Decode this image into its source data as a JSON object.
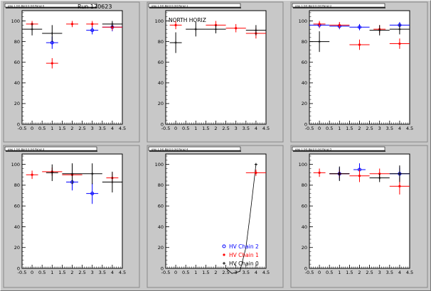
{
  "run_label": "Run 170623",
  "colors": {
    "chain2": "#0000ff",
    "chain1": "#ff0000",
    "chain0": "#000000",
    "pad": "#c8c8c8",
    "frame": "#ffffff"
  },
  "chart_data": [
    {
      "type": "scatter",
      "title": "ewe 1 [H] Bord 0 [H] Panel 0",
      "annotation": "Run 170623",
      "xlim": [
        -0.5,
        4.5
      ],
      "ylim": [
        0,
        110
      ],
      "xticks": [
        "-0.5",
        "0",
        "0.5",
        "1",
        "1.5",
        "2",
        "2.5",
        "3",
        "3.5",
        "4",
        "4.5"
      ],
      "yticks": [
        "0",
        "20",
        "40",
        "60",
        "80",
        "100"
      ],
      "series": [
        {
          "name": "HV Chain 2",
          "marker": "circle",
          "color": "#0000ff",
          "points": [
            [
              1,
              79,
              0.3,
              6
            ],
            [
              3,
              91,
              0.3,
              4
            ],
            [
              4,
              94,
              0.5,
              4
            ]
          ]
        },
        {
          "name": "HV Chain 1",
          "marker": "star",
          "color": "#ff0000",
          "points": [
            [
              0,
              97,
              0.3,
              3
            ],
            [
              1,
              59,
              0.3,
              5
            ],
            [
              2,
              97,
              0.3,
              3
            ],
            [
              3,
              97,
              0.3,
              3
            ],
            [
              4,
              94,
              0.5,
              3
            ]
          ]
        },
        {
          "name": "HV Chain 0",
          "marker": "cross",
          "color": "#000000",
          "points": [
            [
              0,
              92,
              0.5,
              6
            ],
            [
              1,
              88,
              0.5,
              8
            ],
            [
              4,
              97,
              0.5,
              3
            ]
          ]
        }
      ]
    },
    {
      "type": "scatter",
      "title": "ewe 1 [H] Bord 0 [H] Panel 1",
      "annotation": "NORTH HORIZ",
      "xlim": [
        -0.5,
        4.5
      ],
      "ylim": [
        0,
        110
      ],
      "xticks": [
        "-0.5",
        "0",
        "0.5",
        "1",
        "1.5",
        "2",
        "2.5",
        "3",
        "3.5",
        "4",
        "4.5"
      ],
      "yticks": [
        "0",
        "20",
        "40",
        "60",
        "80",
        "100"
      ],
      "series": [
        {
          "name": "HV Chain 1",
          "marker": "star",
          "color": "#ff0000",
          "points": [
            [
              0,
              96,
              0.3,
              4
            ],
            [
              2,
              96,
              0.5,
              4
            ],
            [
              3,
              93,
              0.5,
              4
            ],
            [
              4,
              88,
              0.5,
              5
            ]
          ]
        },
        {
          "name": "HV Chain 0",
          "marker": "cross",
          "color": "#000000",
          "points": [
            [
              0,
              79,
              0.3,
              10
            ],
            [
              1,
              92,
              0.5,
              7
            ],
            [
              2,
              92,
              0.5,
              4
            ],
            [
              4,
              91,
              0.5,
              5
            ]
          ]
        }
      ]
    },
    {
      "type": "scatter",
      "title": "ewe 1 [H] Bord 0 [H] Panel 2",
      "annotation": "",
      "xlim": [
        -0.5,
        4.5
      ],
      "ylim": [
        0,
        110
      ],
      "xticks": [
        "-0.5",
        "0",
        "0.5",
        "1",
        "1.5",
        "2",
        "2.5",
        "3",
        "3.5",
        "4",
        "4.5"
      ],
      "yticks": [
        "0",
        "20",
        "40",
        "60",
        "80",
        "100"
      ],
      "series": [
        {
          "name": "HV Chain 2",
          "marker": "circle",
          "color": "#0000ff",
          "points": [
            [
              0,
              96,
              0.5,
              3
            ],
            [
              1,
              95,
              0.5,
              3
            ],
            [
              2,
              94,
              0.5,
              3
            ],
            [
              4,
              96,
              0.5,
              3
            ]
          ]
        },
        {
          "name": "HV Chain 1",
          "marker": "star",
          "color": "#ff0000",
          "points": [
            [
              0,
              97,
              0.3,
              3
            ],
            [
              1,
              96,
              0.5,
              3
            ],
            [
              2,
              77,
              0.5,
              5
            ],
            [
              3,
              92,
              0.3,
              4
            ],
            [
              4,
              78,
              0.5,
              5
            ]
          ]
        },
        {
          "name": "HV Chain 0",
          "marker": "cross",
          "color": "#000000",
          "points": [
            [
              0,
              80,
              0.5,
              10
            ],
            [
              3,
              91,
              0.5,
              5
            ],
            [
              4,
              92,
              0.5,
              5
            ]
          ]
        }
      ]
    },
    {
      "type": "scatter",
      "title": "ewe 1 [H] Bord 0 [H] Panel 3",
      "annotation": "",
      "xlim": [
        -0.5,
        4.5
      ],
      "ylim": [
        0,
        110
      ],
      "xticks": [
        "-0.5",
        "0",
        "0.5",
        "1",
        "1.5",
        "2",
        "2.5",
        "3",
        "3.5",
        "4",
        "4.5"
      ],
      "yticks": [
        "0",
        "20",
        "40",
        "60",
        "80",
        "100"
      ],
      "series": [
        {
          "name": "HV Chain 2",
          "marker": "circle",
          "color": "#0000ff",
          "points": [
            [
              2,
              83,
              0.3,
              8
            ],
            [
              3,
              72,
              0.3,
              10
            ]
          ]
        },
        {
          "name": "HV Chain 1",
          "marker": "star",
          "color": "#ff0000",
          "points": [
            [
              0,
              90,
              0.3,
              4
            ],
            [
              1,
              93,
              0.5,
              4
            ],
            [
              2,
              90,
              0.5,
              4
            ],
            [
              4,
              87,
              0.3,
              5
            ]
          ]
        },
        {
          "name": "HV Chain 0",
          "marker": "cross",
          "color": "#000000",
          "points": [
            [
              1,
              92,
              0.3,
              8
            ],
            [
              2,
              91,
              0.5,
              10
            ],
            [
              3,
              91,
              0.5,
              10
            ],
            [
              4,
              83,
              0.5,
              10
            ]
          ]
        }
      ]
    },
    {
      "type": "scatter",
      "title": "ewe 1 [H] Bord 0 [H] Panel 4",
      "annotation": "",
      "xlim": [
        -0.5,
        4.5
      ],
      "ylim": [
        0,
        110
      ],
      "xticks": [
        "-0.5",
        "0",
        "0.5",
        "1",
        "1.5",
        "2",
        "2.5",
        "3",
        "3.5",
        "4",
        "4.5"
      ],
      "yticks": [
        "0",
        "20",
        "40",
        "60",
        "80",
        "100"
      ],
      "legend": [
        {
          "label": "HV Chain 2",
          "marker": "circle",
          "color": "#0000ff"
        },
        {
          "label": "HV Chain 1",
          "marker": "star",
          "color": "#ff0000"
        },
        {
          "label": "HV Chain 0",
          "marker": "cross",
          "color": "#000000"
        }
      ],
      "legend_position": "bottom-right",
      "series": [
        {
          "name": "HV Chain 1",
          "marker": "star",
          "color": "#ff0000",
          "points": [
            [
              4,
              92,
              0.5,
              3
            ]
          ]
        },
        {
          "name": "HV Chain 0",
          "marker": "cross",
          "color": "#000000",
          "points": [
            [
              4,
              100,
              0.0,
              0
            ]
          ]
        }
      ],
      "curve": {
        "color": "#000000",
        "points": [
          [
            2.5,
            0
          ],
          [
            2.8,
            -5
          ],
          [
            3.2,
            -3
          ],
          [
            3.5,
            20
          ],
          [
            3.7,
            50
          ],
          [
            3.85,
            75
          ],
          [
            4,
            100
          ]
        ]
      }
    },
    {
      "type": "scatter",
      "title": "ewe 1 [H] Bord 0 [H] Panel 5",
      "annotation": "",
      "xlim": [
        -0.5,
        4.5
      ],
      "ylim": [
        0,
        110
      ],
      "xticks": [
        "-0.5",
        "0",
        "0.5",
        "1",
        "1.5",
        "2",
        "2.5",
        "3",
        "3.5",
        "4",
        "4.5"
      ],
      "yticks": [
        "0",
        "20",
        "40",
        "60",
        "80",
        "100"
      ],
      "series": [
        {
          "name": "HV Chain 2",
          "marker": "circle",
          "color": "#0000ff",
          "points": [
            [
              1,
              91,
              0.5,
              6
            ],
            [
              2,
              95,
              0.3,
              6
            ],
            [
              4,
              91,
              0.5,
              6
            ]
          ]
        },
        {
          "name": "HV Chain 1",
          "marker": "star",
          "color": "#ff0000",
          "points": [
            [
              0,
              92,
              0.3,
              4
            ],
            [
              1,
              91,
              0.5,
              4
            ],
            [
              2,
              89,
              0.5,
              6
            ],
            [
              3,
              91,
              0.5,
              5
            ],
            [
              4,
              79,
              0.5,
              8
            ]
          ]
        },
        {
          "name": "HV Chain 0",
          "marker": "cross",
          "color": "#000000",
          "points": [
            [
              1,
              91,
              0.5,
              7
            ],
            [
              3,
              87,
              0.5,
              4
            ],
            [
              4,
              91,
              0.5,
              8
            ]
          ]
        }
      ]
    }
  ]
}
